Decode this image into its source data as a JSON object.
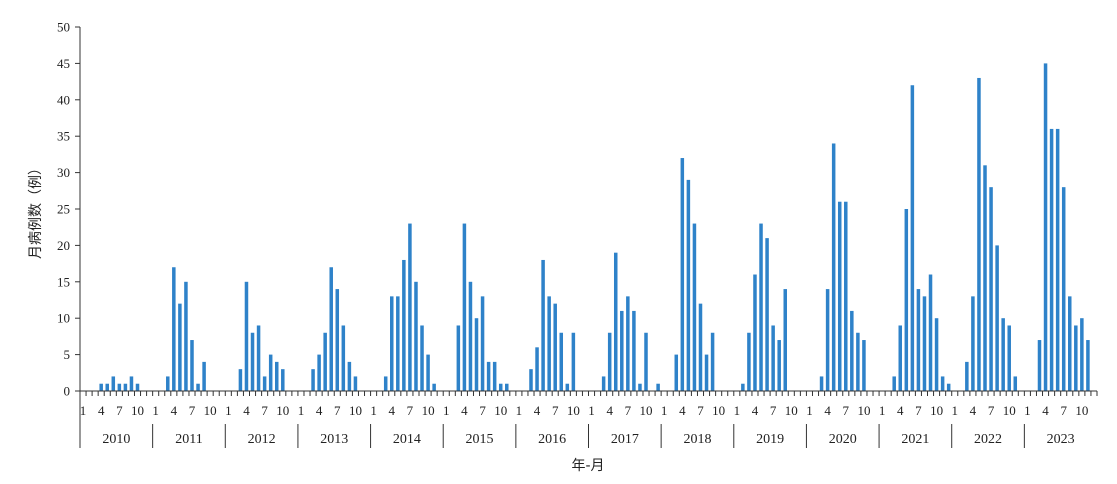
{
  "chart_data": {
    "type": "bar",
    "title": "",
    "xlabel": "年-月",
    "ylabel": "月病例数（例）",
    "ylim": [
      0,
      50
    ],
    "y_ticks": [
      0,
      5,
      10,
      15,
      20,
      25,
      30,
      35,
      40,
      45,
      50
    ],
    "month_tick_labels": [
      "1",
      "4",
      "7",
      "10"
    ],
    "grid": false,
    "legend": "none",
    "bar_color": "#2e82c9",
    "series": [
      {
        "year": "2010",
        "values": [
          0,
          0,
          0,
          1,
          1,
          2,
          1,
          1,
          2,
          1,
          0,
          0
        ]
      },
      {
        "year": "2011",
        "values": [
          0,
          0,
          2,
          17,
          12,
          15,
          7,
          1,
          4,
          0,
          0,
          0
        ]
      },
      {
        "year": "2012",
        "values": [
          0,
          0,
          3,
          15,
          8,
          9,
          2,
          5,
          4,
          3,
          0,
          0
        ]
      },
      {
        "year": "2013",
        "values": [
          0,
          0,
          3,
          5,
          8,
          17,
          14,
          9,
          4,
          2,
          0,
          0
        ]
      },
      {
        "year": "2014",
        "values": [
          0,
          0,
          2,
          13,
          13,
          18,
          23,
          15,
          9,
          5,
          1,
          0
        ]
      },
      {
        "year": "2015",
        "values": [
          0,
          0,
          9,
          23,
          15,
          10,
          13,
          4,
          4,
          1,
          1,
          0
        ]
      },
      {
        "year": "2016",
        "values": [
          0,
          0,
          3,
          6,
          18,
          13,
          12,
          8,
          1,
          8,
          0,
          0
        ]
      },
      {
        "year": "2017",
        "values": [
          0,
          0,
          2,
          8,
          19,
          11,
          13,
          11,
          1,
          8,
          0,
          1
        ]
      },
      {
        "year": "2018",
        "values": [
          0,
          0,
          5,
          32,
          29,
          23,
          12,
          5,
          8,
          0,
          0,
          0
        ]
      },
      {
        "year": "2019",
        "values": [
          0,
          1,
          8,
          16,
          23,
          21,
          9,
          7,
          14,
          0,
          0,
          0
        ]
      },
      {
        "year": "2020",
        "values": [
          0,
          0,
          2,
          14,
          34,
          26,
          26,
          11,
          8,
          7,
          0,
          0
        ]
      },
      {
        "year": "2021",
        "values": [
          0,
          0,
          2,
          9,
          25,
          42,
          14,
          13,
          16,
          10,
          2,
          1
        ]
      },
      {
        "year": "2022",
        "values": [
          0,
          0,
          4,
          13,
          43,
          31,
          28,
          20,
          10,
          9,
          2,
          0
        ]
      },
      {
        "year": "2023",
        "values": [
          0,
          0,
          7,
          45,
          36,
          36,
          28,
          13,
          9,
          10,
          7,
          0
        ]
      }
    ]
  }
}
